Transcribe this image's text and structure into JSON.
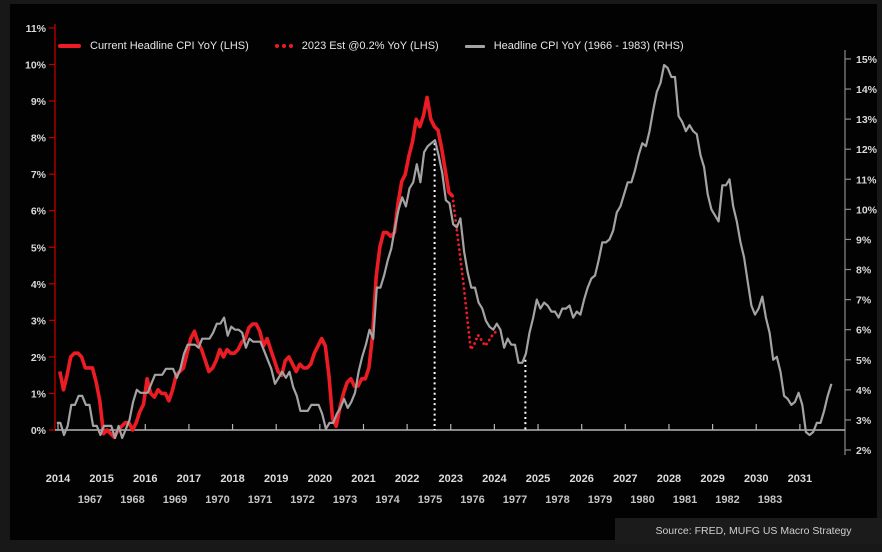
{
  "legend": [
    {
      "label": "Current Headline CPI YoY (LHS)",
      "marker": "red-dash"
    },
    {
      "label": "2023 Est @0.2% YoY (LHS)",
      "marker": "red-dots"
    },
    {
      "label": "Headline CPI YoY (1966 - 1983) (RHS)",
      "marker": "gray-dash"
    }
  ],
  "source": {
    "text": "Source: FRED, MUFG US Macro Strategy"
  },
  "colors": {
    "background": "#020202",
    "page_margin": "#181818",
    "red_line": "#ec1c24",
    "left_spine": "#c00000",
    "gray_line": "#a3a3a3",
    "right_spine": "#8c8c8c",
    "baseline": "#b5b5b5",
    "vline_dotted": "#ffffff",
    "tick_text": "#d9d9d9"
  },
  "chart_data": {
    "type": "line",
    "title": "",
    "grid": false,
    "legend_position": "top-left",
    "left_axis": {
      "range": [
        0,
        11
      ],
      "ticks_pct": [
        0,
        1,
        2,
        3,
        4,
        5,
        6,
        7,
        8,
        9,
        10,
        11
      ],
      "label_suffix": "%"
    },
    "right_axis": {
      "range": [
        2,
        15
      ],
      "ticks_pct": [
        2,
        3,
        4,
        5,
        6,
        7,
        8,
        9,
        10,
        11,
        12,
        13,
        14,
        15
      ],
      "label_suffix": "%"
    },
    "x_axis": {
      "primary_years": [
        2014,
        2015,
        2016,
        2017,
        2018,
        2019,
        2020,
        2021,
        2022,
        2023,
        2024,
        2025,
        2026,
        2027,
        2028,
        2029,
        2030,
        2031
      ],
      "secondary_years": [
        1967,
        1968,
        1969,
        1970,
        1971,
        1972,
        1973,
        1974,
        1975,
        1976,
        1977,
        1978,
        1979,
        1980,
        1981,
        1982,
        1983
      ]
    },
    "series": [
      {
        "name": "Current Headline CPI YoY (LHS)",
        "axis": "left",
        "style": "solid",
        "color": "#ec1c24",
        "width": 3.6,
        "start_year": 2014,
        "start_month": 1,
        "monthly_yoy_pct": [
          1.6,
          1.1,
          1.5,
          2.0,
          2.1,
          2.1,
          2.0,
          1.7,
          1.7,
          1.7,
          1.3,
          0.8,
          -0.1,
          0.0,
          -0.1,
          -0.2,
          0.0,
          0.1,
          0.2,
          0.2,
          0.0,
          0.2,
          0.5,
          0.7,
          1.4,
          1.0,
          0.9,
          1.1,
          1.0,
          1.0,
          0.8,
          1.1,
          1.5,
          1.6,
          1.7,
          2.1,
          2.5,
          2.7,
          2.4,
          2.2,
          1.9,
          1.6,
          1.7,
          1.9,
          2.2,
          2.0,
          2.2,
          2.1,
          2.1,
          2.2,
          2.4,
          2.5,
          2.8,
          2.9,
          2.9,
          2.7,
          2.3,
          2.5,
          2.2,
          1.9,
          1.6,
          1.5,
          1.9,
          2.0,
          1.8,
          1.6,
          1.8,
          1.7,
          1.7,
          1.8,
          2.1,
          2.3,
          2.5,
          2.3,
          1.5,
          0.3,
          0.1,
          0.6,
          1.0,
          1.3,
          1.4,
          1.2,
          1.2,
          1.4,
          1.4,
          1.7,
          2.6,
          4.2,
          5.0,
          5.4,
          5.4,
          5.3,
          5.4,
          6.2,
          6.8,
          7.0,
          7.5,
          7.9,
          8.5,
          8.3,
          8.6,
          9.1,
          8.5,
          8.3,
          8.2,
          7.7,
          7.1,
          6.5,
          6.4
        ]
      },
      {
        "name": "2023 Est @0.2% YoY (LHS)",
        "axis": "left",
        "style": "dotted",
        "color": "#ec1c24",
        "width": 2.8,
        "start_year": 2023,
        "start_month": 1,
        "monthly_yoy_pct": [
          6.4,
          5.6,
          4.8,
          4.0,
          3.1,
          2.2,
          2.35,
          2.6,
          2.45,
          2.3,
          2.45,
          2.6,
          2.7
        ]
      },
      {
        "name": "Headline CPI YoY (1966 - 1983) (RHS)",
        "axis": "right",
        "style": "solid",
        "color": "#a3a3a3",
        "width": 2.2,
        "start_year": 1966,
        "start_month": 4,
        "monthly_yoy_pct": [
          2.9,
          2.9,
          2.5,
          2.8,
          3.5,
          3.5,
          3.8,
          3.8,
          3.5,
          3.5,
          2.8,
          2.8,
          2.5,
          2.8,
          2.8,
          2.8,
          2.4,
          2.8,
          2.4,
          2.7,
          3.0,
          3.6,
          4.0,
          3.9,
          3.9,
          3.9,
          4.2,
          4.5,
          4.5,
          4.5,
          4.7,
          4.7,
          4.7,
          4.4,
          4.7,
          5.2,
          5.5,
          5.5,
          5.5,
          5.4,
          5.7,
          5.7,
          5.7,
          5.9,
          6.2,
          6.2,
          6.4,
          5.8,
          6.1,
          6.0,
          6.0,
          5.9,
          5.4,
          5.7,
          5.6,
          5.6,
          5.6,
          5.3,
          5.0,
          4.7,
          4.2,
          4.4,
          4.6,
          4.4,
          4.6,
          4.1,
          3.8,
          3.3,
          3.3,
          3.3,
          3.5,
          3.5,
          3.5,
          3.2,
          2.7,
          2.9,
          2.9,
          3.2,
          3.4,
          3.7,
          3.4,
          3.6,
          3.9,
          4.6,
          5.1,
          5.5,
          6.0,
          5.7,
          7.4,
          7.4,
          7.8,
          8.3,
          8.7,
          9.4,
          10.0,
          10.4,
          10.1,
          10.7,
          10.9,
          11.5,
          10.9,
          11.9,
          12.1,
          12.2,
          12.3,
          11.8,
          11.2,
          10.3,
          10.2,
          9.5,
          9.4,
          9.7,
          8.6,
          7.9,
          7.4,
          7.4,
          6.9,
          6.7,
          6.3,
          6.1,
          6.0,
          6.2,
          6.0,
          5.4,
          5.7,
          5.5,
          5.5,
          4.9,
          4.9,
          5.2,
          5.9,
          6.4,
          7.0,
          6.7,
          6.9,
          6.8,
          6.6,
          6.6,
          6.4,
          6.7,
          6.7,
          6.8,
          6.4,
          6.6,
          6.5,
          7.0,
          7.4,
          7.7,
          7.8,
          8.3,
          8.9,
          8.9,
          9.0,
          9.3,
          9.9,
          10.1,
          10.5,
          10.9,
          10.9,
          11.3,
          11.8,
          12.2,
          12.1,
          12.6,
          13.3,
          13.9,
          14.2,
          14.8,
          14.7,
          14.4,
          14.4,
          13.1,
          12.9,
          12.6,
          12.8,
          12.6,
          12.5,
          11.8,
          11.4,
          10.5,
          10.0,
          9.8,
          9.6,
          10.8,
          10.8,
          11.0,
          10.1,
          9.6,
          8.9,
          8.4,
          7.6,
          6.8,
          6.5,
          6.7,
          7.1,
          6.4,
          5.9,
          5.0,
          5.1,
          4.6,
          3.8,
          3.7,
          3.5,
          3.6,
          3.9,
          3.5,
          2.6,
          2.5,
          2.6,
          2.9,
          2.9,
          3.3,
          3.8,
          4.2
        ]
      }
    ],
    "annotations": {
      "vlines_dotted_white": [
        {
          "x_year_primary": 2022.63,
          "top_value_rhs": 12.2
        },
        {
          "x_year_primary": 2024.71,
          "top_value_rhs": 5.0
        }
      ]
    }
  }
}
